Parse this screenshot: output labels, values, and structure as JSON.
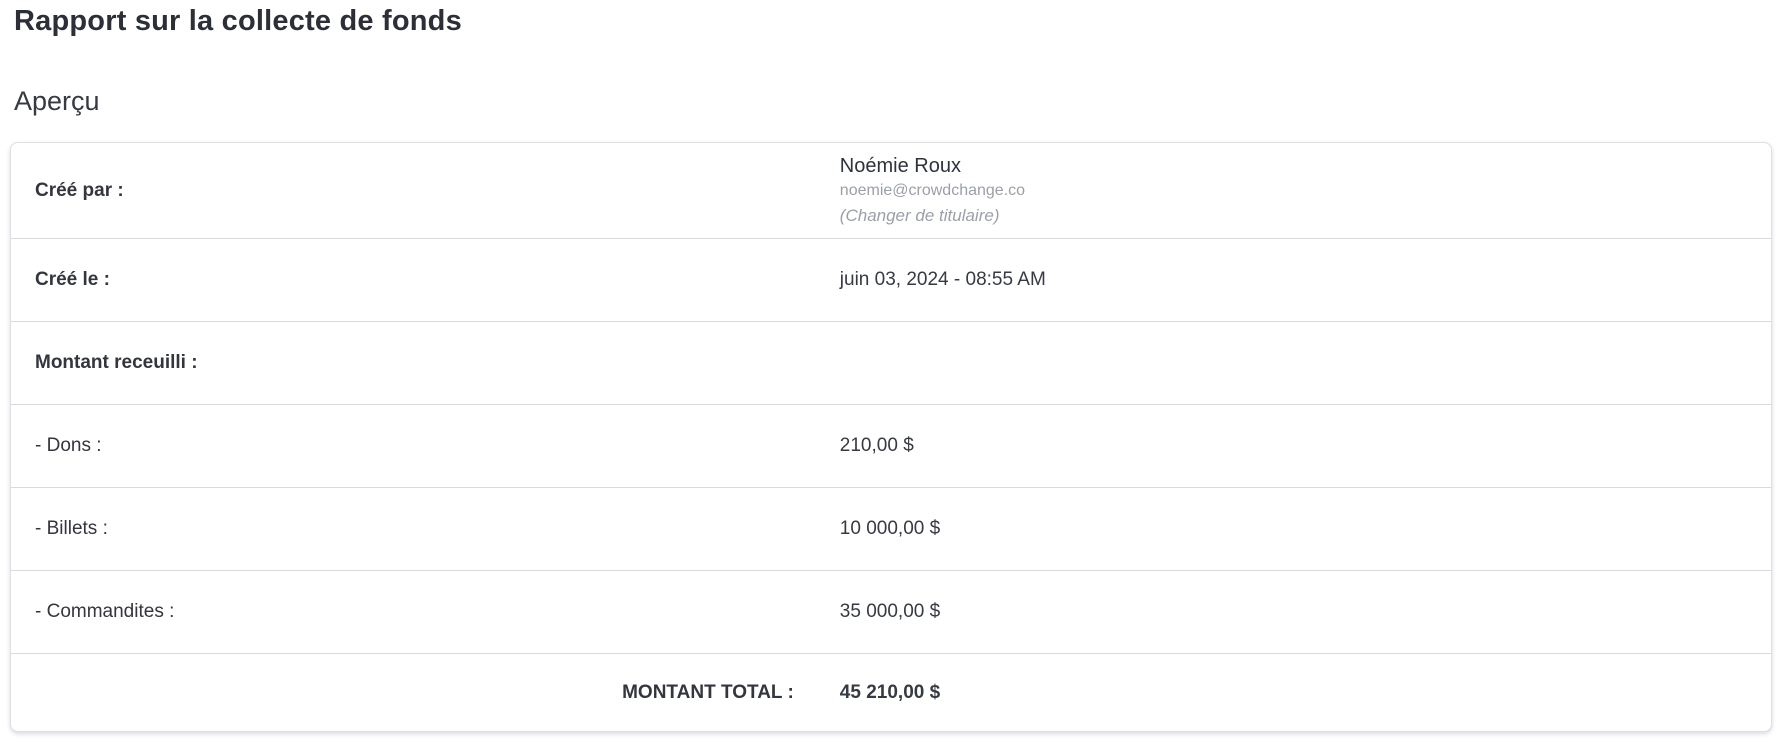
{
  "page": {
    "title": "Rapport sur la collecte de fonds"
  },
  "overview": {
    "heading": "Aperçu",
    "rows": {
      "created_by": {
        "label": "Créé par :",
        "owner_name": "Noémie Roux",
        "owner_email": "noemie@crowdchange.co",
        "change_owner_link": "(Changer de titulaire)"
      },
      "created_on": {
        "label": "Créé le :",
        "value": "juin 03, 2024 - 08:55 AM"
      },
      "amount_collected": {
        "label": "Montant receuilli :",
        "value": ""
      },
      "donations": {
        "label": "- Dons :",
        "value": "210,00 $"
      },
      "tickets": {
        "label": "- Billets :",
        "value": "10 000,00 $"
      },
      "sponsorships": {
        "label": "- Commandites :",
        "value": "35 000,00 $"
      },
      "total": {
        "label": "MONTANT TOTAL :",
        "value": "45 210,00 $"
      }
    }
  },
  "colors": {
    "text_dark": "#363a42",
    "text_muted": "#9ba0a8",
    "card_border": "#dddfe3",
    "row_divider": "#d8dadd",
    "background": "#ffffff"
  }
}
